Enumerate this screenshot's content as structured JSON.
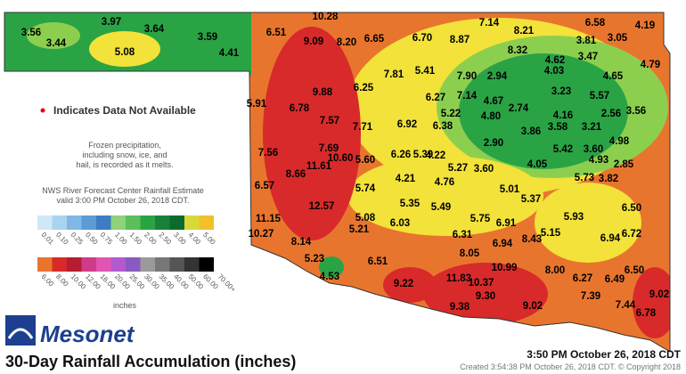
{
  "stations": [
    "3.56",
    "3.97",
    "3.64",
    "3.44",
    "5.08",
    "3.59",
    "4.41",
    "10.28",
    "6.51",
    "9.09",
    "8.20",
    "6.65",
    "6.70",
    "8.87",
    "7.14",
    "8.21",
    "6.58",
    "4.19",
    "3.81",
    "3.05",
    "8.32",
    "4.62",
    "3.47",
    "4.79",
    "7.81",
    "5.41",
    "7.90",
    "2.94",
    "4.03",
    "4.65",
    "6.25",
    "9.88",
    "5.91",
    "6.78",
    "6.27",
    "7.14",
    "4.67",
    "3.23",
    "5.57",
    "5.22",
    "2.74",
    "4.80",
    "4.16",
    "2.56",
    "3.56",
    "7.57",
    "7.71",
    "6.92",
    "6.38",
    "3.86",
    "3.58",
    "3.21",
    "2.90",
    "4.98",
    "7.69",
    "7.56",
    "4.22",
    "6.26",
    "5.39",
    "5.42",
    "3.60",
    "4.93",
    "2.85",
    "11.61",
    "8.66",
    "10.60",
    "5.60",
    "5.27",
    "3.60",
    "4.05",
    "4.21",
    "4.76",
    "5.73",
    "3.82",
    "6.57",
    "5.01",
    "5.74",
    "5.37",
    "12.57",
    "5.35",
    "5.49",
    "5.08",
    "11.15",
    "5.21",
    "6.03",
    "5.75",
    "6.91",
    "5.93",
    "6.50",
    "10.27",
    "8.14",
    "6.31",
    "6.94",
    "8.43",
    "5.15",
    "6.94",
    "6.72",
    "5.23",
    "6.51",
    "8.05",
    "4.53",
    "9.22",
    "11.83",
    "10.37",
    "10.99",
    "8.00",
    "6.27",
    "6.49",
    "6.50",
    "9.30",
    "7.39",
    "9.02",
    "9.38",
    "9.02",
    "7.44",
    "6.78"
  ],
  "legend": {
    "missing": "Indicates Data Not Available",
    "frozen": [
      "Frozen precipitation,",
      "including snow, ice, and",
      "hail, is recorded as it melts."
    ],
    "estimate": [
      "NWS River Forecast Center Rainfall Estimate",
      "valid 3:00 PM October 26, 2018 CDT."
    ],
    "scale_low": [
      "0.01",
      "0.10",
      "0.25",
      "0.50",
      "0.75",
      "1.00",
      "1.50",
      "2.00",
      "2.50",
      "3.00",
      "4.00",
      "5.00"
    ],
    "scale_high": [
      "6.00",
      "8.00",
      "10.00",
      "12.00",
      "16.00",
      "20.00",
      "25.00",
      "30.00",
      "35.00",
      "40.00",
      "50.00",
      "60.00",
      "70.00+"
    ],
    "units": "inches"
  },
  "footer": {
    "logo": "Mesonet",
    "title": "30-Day Rainfall Accumulation (inches)",
    "time": "3:50 PM October 26, 2018 CDT",
    "created": "Created 3:54:38 PM October 26, 2018 CDT. © Copyright 2018"
  }
}
